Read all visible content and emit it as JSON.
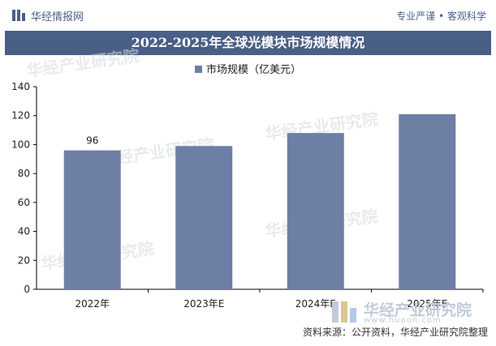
{
  "header": {
    "brand": "华经情报网",
    "slogan": "专业严谨 • 客观科学"
  },
  "title": "2022-2025年全球光模块市场规模情况",
  "legend": {
    "label": "市场规模（亿美元）"
  },
  "source": "资料来源：公开资料，华经产业研究院整理",
  "watermark": {
    "text": "华经产业研究院",
    "url": "www.huaon.com"
  },
  "colors": {
    "bar": "#6e7fa5",
    "title_bg": "#4a5f86",
    "brand": "#4a5f86"
  },
  "chart_data": {
    "type": "bar",
    "categories": [
      "2022年",
      "2023年E",
      "2024年E",
      "2025年E"
    ],
    "series": [
      {
        "name": "市场规模（亿美元）",
        "values": [
          96,
          99,
          108,
          121
        ],
        "data_labels": [
          "96",
          "",
          "",
          ""
        ]
      }
    ],
    "ylim": [
      0,
      140
    ],
    "yticks": [
      0,
      20,
      40,
      60,
      80,
      100,
      120,
      140
    ],
    "xlabel": "",
    "ylabel": "",
    "grid": false,
    "legend_position": "top-center"
  }
}
